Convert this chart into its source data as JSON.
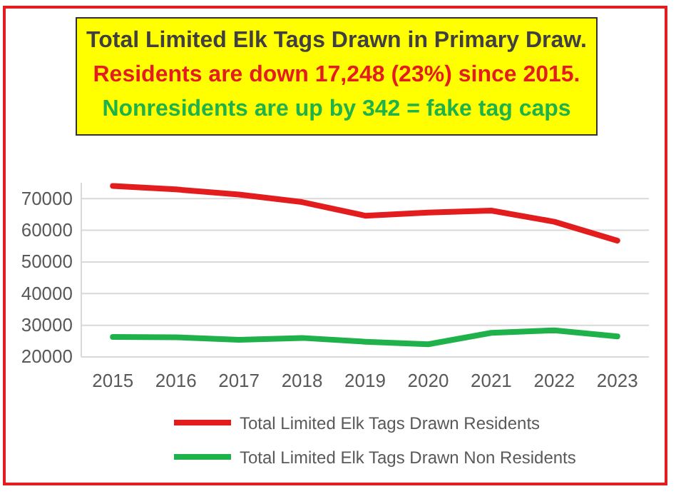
{
  "chart_data": {
    "type": "line",
    "title": "Total Limited Elk Tags Drawn in Primary Draw.",
    "annotations": [
      "Residents are down 17,248 (23%) since 2015.",
      "Nonresidents are up by 342 = fake tag caps"
    ],
    "categories": [
      "2015",
      "2016",
      "2017",
      "2018",
      "2019",
      "2020",
      "2021",
      "2022",
      "2023"
    ],
    "series": [
      {
        "name": "Total Limited Elk Tags Drawn Residents",
        "color": "#e31d1d",
        "values": [
          74000,
          72900,
          71300,
          68900,
          64600,
          65600,
          66200,
          62700,
          56700
        ]
      },
      {
        "name": "Total Limited Elk Tags Drawn Non Residents",
        "color": "#1fb24a",
        "values": [
          26300,
          26200,
          25400,
          26000,
          24800,
          24000,
          27600,
          28400,
          26500
        ]
      }
    ],
    "ylim": [
      20000,
      75000
    ],
    "yticks": [
      20000,
      30000,
      40000,
      50000,
      60000,
      70000
    ],
    "grid": "y",
    "legend": "bottom",
    "marker": "none",
    "line_style": "solid"
  }
}
